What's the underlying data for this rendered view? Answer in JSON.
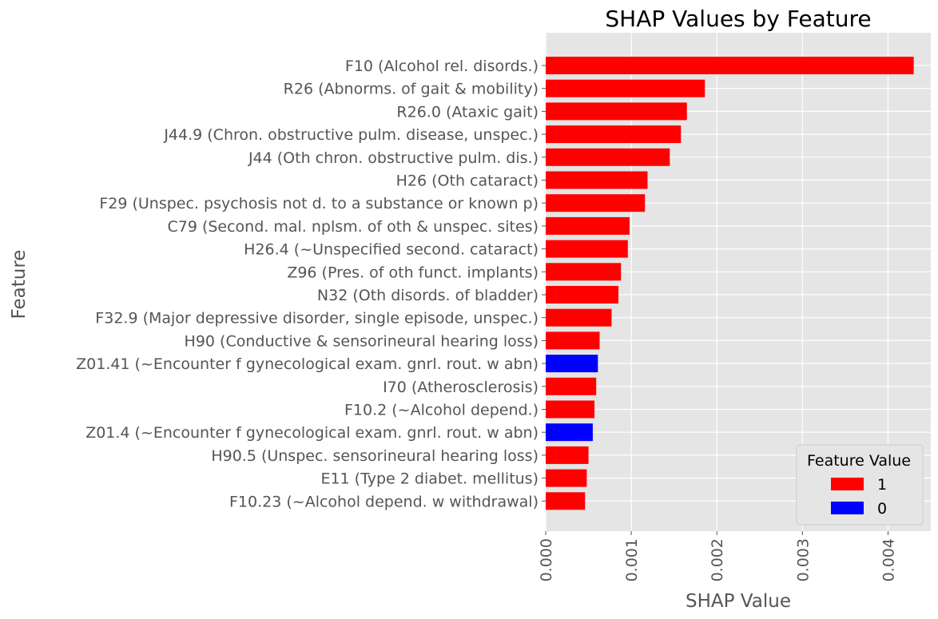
{
  "chart_data": {
    "type": "bar",
    "orientation": "horizontal",
    "title": "SHAP Values by Feature",
    "xlabel": "SHAP Value",
    "ylabel": "Feature",
    "xlim": [
      0,
      0.0045
    ],
    "xticks": [
      0.0,
      0.001,
      0.002,
      0.003,
      0.004
    ],
    "xtick_labels": [
      "0.000",
      "0.001",
      "0.002",
      "0.003",
      "0.004"
    ],
    "grid": true,
    "legend": {
      "title": "Feature Value",
      "placement": "lower-right",
      "entries": [
        {
          "label": "1",
          "color": "#ff0000"
        },
        {
          "label": "0",
          "color": "#0000ff"
        }
      ]
    },
    "categories": [
      "F10 (Alcohol rel. disords.)",
      "R26 (Abnorms. of gait & mobility)",
      "R26.0 (Ataxic gait)",
      "J44.9 (Chron. obstructive pulm. disease, unspec.)",
      "J44 (Oth chron. obstructive pulm. dis.)",
      "H26 (Oth cataract)",
      "F29 (Unspec. psychosis not d. to a substance or known p)",
      "C79 (Second. mal. nplsm. of oth & unspec. sites)",
      "H26.4 (~Unspecified second. cataract)",
      "Z96 (Pres. of oth funct. implants)",
      "N32 (Oth disords. of bladder)",
      "F32.9 (Major depressive disorder, single episode, unspec.)",
      "H90 (Conductive & sensorineural hearing loss)",
      "Z01.41 (~Encounter f gynecological exam. gnrl. rout. w abn)",
      "I70 (Atherosclerosis)",
      "F10.2 (~Alcohol depend.)",
      "Z01.4 (~Encounter f gynecological exam. gnrl. rout. w abn)",
      "H90.5 (Unspec. sensorineural hearing loss)",
      "E11 (Type 2 diabet. mellitus)",
      "F10.23 (~Alcohol depend. w withdrawal)"
    ],
    "values": [
      0.0043,
      0.00186,
      0.00165,
      0.00158,
      0.00145,
      0.00119,
      0.00116,
      0.00098,
      0.00096,
      0.00088,
      0.00085,
      0.00077,
      0.00063,
      0.00061,
      0.00059,
      0.00057,
      0.00055,
      0.0005,
      0.00048,
      0.00046
    ],
    "feature_values": [
      "1",
      "1",
      "1",
      "1",
      "1",
      "1",
      "1",
      "1",
      "1",
      "1",
      "1",
      "1",
      "1",
      "0",
      "1",
      "1",
      "0",
      "1",
      "1",
      "1"
    ]
  }
}
